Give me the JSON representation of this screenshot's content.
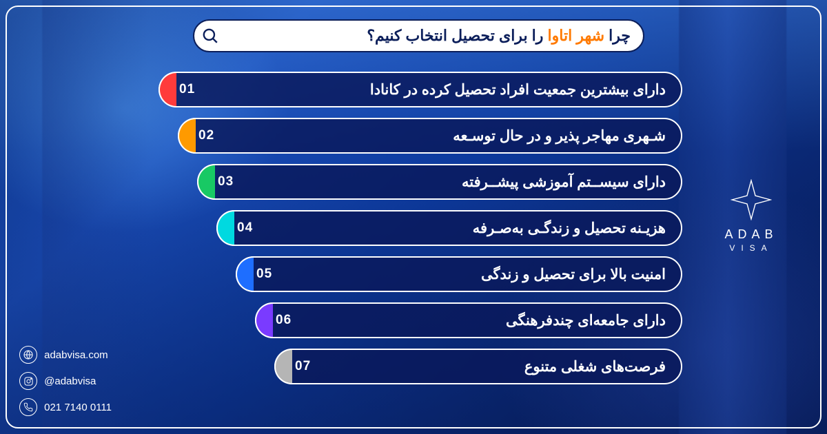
{
  "title": {
    "pre": "چرا ",
    "highlight": "شهر اتاوا",
    "post": " را برای تحصیل انتخاب کنیم؟"
  },
  "items": [
    {
      "num": "01",
      "text": "دارای بیشترین جمعیت افراد تحصیل کرده در کانادا",
      "color": "#ff3b3b"
    },
    {
      "num": "02",
      "text": "شـهری مهاجر پذیر و در حال توسـعه",
      "color": "#ff9a00"
    },
    {
      "num": "03",
      "text": "دارای سیســتم آموزشی پیشــرفته",
      "color": "#18c964"
    },
    {
      "num": "04",
      "text": "هزیـنه تحصیل و زندگـی به‌صـرفه",
      "color": "#00d9e0"
    },
    {
      "num": "05",
      "text": "امنیت بالا برای تحصیل و زندگی",
      "color": "#1e6eff"
    },
    {
      "num": "06",
      "text": "دارای جامعه‌ای چندفرهنگی",
      "color": "#7a3bff"
    },
    {
      "num": "07",
      "text": "فرصت‌های شغلی متنوع",
      "color": "#b5b5b5"
    }
  ],
  "brand": {
    "name": "ADAB",
    "sub": "VISA"
  },
  "contacts": {
    "website": "adabvisa.com",
    "instagram": "@adabvisa",
    "phone": "021 7140 0111"
  },
  "colors": {
    "title_text": "#0b1e5a",
    "highlight": "#ff7a00",
    "item_text": "#ffffff"
  }
}
